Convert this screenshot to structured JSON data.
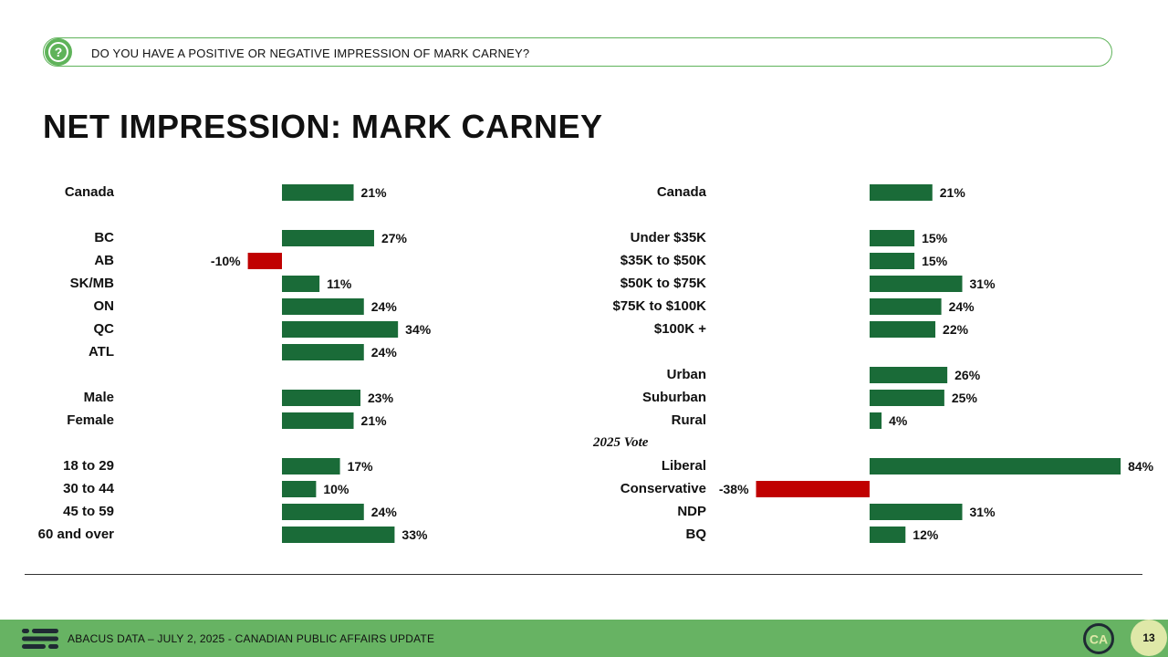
{
  "question": "DO YOU HAVE A POSITIVE OR NEGATIVE IMPRESSION OF MARK CARNEY?",
  "title": "NET IMPRESSION: MARK CARNEY",
  "footer": {
    "source": "ABACUS DATA – JULY 2, 2025 - CANADIAN PUBLIC AFFAIRS UPDATE",
    "badge": "CA",
    "page": "13"
  },
  "colors": {
    "positive": "#1a6b38",
    "negative": "#c00000",
    "accent": "#67b363"
  },
  "chart_data": [
    {
      "type": "bar",
      "orientation": "horizontal",
      "groups": [
        {
          "label": "",
          "rows": [
            {
              "category": "Canada",
              "value": 21,
              "label": "21%"
            }
          ]
        },
        {
          "label": "",
          "rows": [
            {
              "category": "BC",
              "value": 27,
              "label": "27%"
            },
            {
              "category": "AB",
              "value": -10,
              "label": "-10%"
            },
            {
              "category": "SK/MB",
              "value": 11,
              "label": "11%"
            },
            {
              "category": "ON",
              "value": 24,
              "label": "24%"
            },
            {
              "category": "QC",
              "value": 34,
              "label": "34%"
            },
            {
              "category": "ATL",
              "value": 24,
              "label": "24%"
            }
          ]
        },
        {
          "label": "",
          "rows": [
            {
              "category": "Male",
              "value": 23,
              "label": "23%"
            },
            {
              "category": "Female",
              "value": 21,
              "label": "21%"
            }
          ]
        },
        {
          "label": "",
          "rows": [
            {
              "category": "18 to 29",
              "value": 17,
              "label": "17%"
            },
            {
              "category": "30 to 44",
              "value": 10,
              "label": "10%"
            },
            {
              "category": "45 to 59",
              "value": 24,
              "label": "24%"
            },
            {
              "category": "60 and over",
              "value": 33,
              "label": "33%"
            }
          ]
        }
      ]
    },
    {
      "type": "bar",
      "orientation": "horizontal",
      "groups": [
        {
          "label": "",
          "rows": [
            {
              "category": "Canada",
              "value": 21,
              "label": "21%"
            }
          ]
        },
        {
          "label": "",
          "rows": [
            {
              "category": "Under $35K",
              "value": 15,
              "label": "15%"
            },
            {
              "category": "$35K to $50K",
              "value": 15,
              "label": "15%"
            },
            {
              "category": "$50K to $75K",
              "value": 31,
              "label": "31%"
            },
            {
              "category": "$75K to $100K",
              "value": 24,
              "label": "24%"
            },
            {
              "category": "$100K +",
              "value": 22,
              "label": "22%"
            }
          ]
        },
        {
          "label": "",
          "rows": [
            {
              "category": "Urban",
              "value": 26,
              "label": "26%"
            },
            {
              "category": "Suburban",
              "value": 25,
              "label": "25%"
            },
            {
              "category": "Rural",
              "value": 4,
              "label": "4%"
            }
          ]
        },
        {
          "label": "2025 Vote",
          "rows": [
            {
              "category": "Liberal",
              "value": 84,
              "label": "84%"
            },
            {
              "category": "Conservative",
              "value": -38,
              "label": "-38%"
            },
            {
              "category": "NDP",
              "value": 31,
              "label": "31%"
            },
            {
              "category": "BQ",
              "value": 12,
              "label": "12%"
            }
          ]
        }
      ]
    }
  ]
}
